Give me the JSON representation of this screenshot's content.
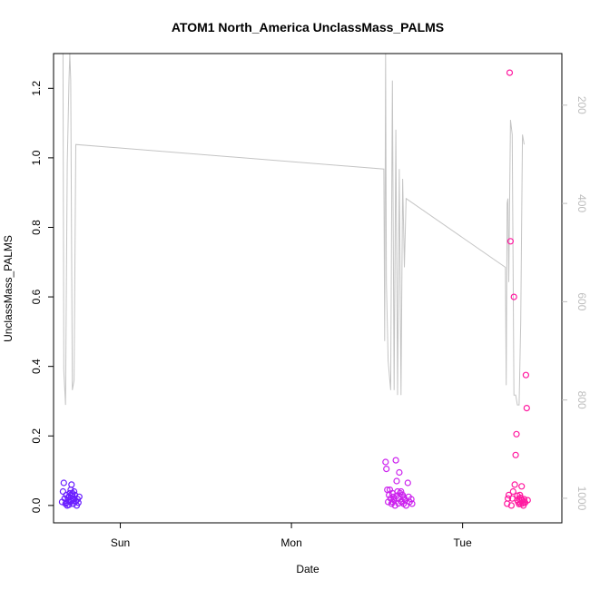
{
  "chart_data": {
    "type": "scatter",
    "title": "ATOM1 North_America UnclassMass_PALMS",
    "xlabel": "Date",
    "ylabel": "UnclassMass_PALMS",
    "x_axis": {
      "type": "date",
      "range_days": [
        -0.39,
        2.58
      ],
      "ticks": [
        {
          "label": "Sun",
          "value": 0
        },
        {
          "label": "Mon",
          "value": 1
        },
        {
          "label": "Tue",
          "value": 2
        }
      ]
    },
    "y_axis": {
      "range": [
        -0.05,
        1.3
      ],
      "ticks": [
        "0.0",
        "0.2",
        "0.4",
        "0.6",
        "0.8",
        "1.0",
        "1.2"
      ]
    },
    "y2_axis": {
      "description": "secondary altitude-like axis, inverted",
      "range": [
        1050,
        95
      ],
      "ticks": [
        "200",
        "400",
        "600",
        "800",
        "1000"
      ],
      "color": "#bdbdbd"
    },
    "grid": false,
    "legend": "none",
    "colors": {
      "group1": "#6a1fff",
      "group2": "#cc22ee",
      "group3": "#ff1aa0",
      "line": "#c4c4c4"
    },
    "series": [
      {
        "color": "#6a1fff",
        "points": [
          [
            -0.34,
            0.01
          ],
          [
            -0.335,
            0.04
          ],
          [
            -0.33,
            0.065
          ],
          [
            -0.325,
            0.02
          ],
          [
            -0.32,
            0.005
          ],
          [
            -0.315,
            0.03
          ],
          [
            -0.31,
            0.0
          ],
          [
            -0.305,
            0.015
          ],
          [
            -0.3,
            0.025
          ],
          [
            -0.295,
            0.01
          ],
          [
            -0.29,
            0.045
          ],
          [
            -0.285,
            0.06
          ],
          [
            -0.28,
            0.035
          ],
          [
            -0.275,
            0.005
          ],
          [
            -0.27,
            0.02
          ],
          [
            -0.265,
            0.03
          ],
          [
            -0.26,
            0.012
          ],
          [
            -0.255,
            0.0
          ],
          [
            -0.25,
            0.018
          ],
          [
            -0.245,
            0.008
          ],
          [
            -0.24,
            0.025
          ],
          [
            -0.3,
            0.002
          ],
          [
            -0.29,
            0.015
          ],
          [
            -0.28,
            0.028
          ],
          [
            -0.27,
            0.04
          ],
          [
            -0.315,
            0.008
          ],
          [
            -0.305,
            0.022
          ],
          [
            -0.295,
            0.035
          ],
          [
            -0.285,
            0.012
          ],
          [
            -0.275,
            0.018
          ]
        ]
      },
      {
        "color": "#cc22ee",
        "points": [
          [
            1.55,
            0.125
          ],
          [
            1.555,
            0.105
          ],
          [
            1.56,
            0.045
          ],
          [
            1.565,
            0.01
          ],
          [
            1.57,
            0.03
          ],
          [
            1.575,
            0.045
          ],
          [
            1.58,
            0.02
          ],
          [
            1.585,
            0.005
          ],
          [
            1.59,
            0.01
          ],
          [
            1.595,
            0.025
          ],
          [
            1.6,
            0.015
          ],
          [
            1.605,
            0.0
          ],
          [
            1.61,
            0.13
          ],
          [
            1.615,
            0.07
          ],
          [
            1.62,
            0.04
          ],
          [
            1.625,
            0.02
          ],
          [
            1.63,
            0.095
          ],
          [
            1.635,
            0.035
          ],
          [
            1.64,
            0.04
          ],
          [
            1.645,
            0.01
          ],
          [
            1.65,
            0.03
          ],
          [
            1.655,
            0.005
          ],
          [
            1.66,
            0.02
          ],
          [
            1.665,
            0.015
          ],
          [
            1.67,
            0.0
          ],
          [
            1.68,
            0.065
          ],
          [
            1.685,
            0.025
          ],
          [
            1.69,
            0.01
          ],
          [
            1.7,
            0.018
          ],
          [
            1.705,
            0.005
          ],
          [
            1.59,
            0.035
          ],
          [
            1.6,
            0.02
          ],
          [
            1.615,
            0.028
          ],
          [
            1.625,
            0.006
          ],
          [
            1.64,
            0.012
          ],
          [
            1.655,
            0.024
          ]
        ]
      },
      {
        "color": "#ff1aa0",
        "points": [
          [
            2.26,
            0.005
          ],
          [
            2.265,
            0.02
          ],
          [
            2.27,
            0.03
          ],
          [
            2.275,
            1.245
          ],
          [
            2.28,
            0.76
          ],
          [
            2.285,
            0.0
          ],
          [
            2.29,
            0.02
          ],
          [
            2.295,
            0.04
          ],
          [
            2.3,
            0.6
          ],
          [
            2.305,
            0.06
          ],
          [
            2.31,
            0.145
          ],
          [
            2.315,
            0.205
          ],
          [
            2.32,
            0.015
          ],
          [
            2.325,
            0.01
          ],
          [
            2.33,
            0.02
          ],
          [
            2.335,
            0.03
          ],
          [
            2.34,
            0.005
          ],
          [
            2.345,
            0.055
          ],
          [
            2.35,
            0.015
          ],
          [
            2.355,
            0.0
          ],
          [
            2.36,
            0.01
          ],
          [
            2.365,
            0.008
          ],
          [
            2.37,
            0.375
          ],
          [
            2.375,
            0.28
          ],
          [
            2.38,
            0.015
          ],
          [
            2.34,
            0.022
          ],
          [
            2.33,
            0.004
          ],
          [
            2.32,
            0.028
          ],
          [
            2.36,
            0.018
          ],
          [
            2.35,
            0.006
          ]
        ]
      }
    ],
    "line_series": {
      "axis": "y2",
      "color": "#c4c4c4",
      "points": [
        [
          -0.335,
          95
        ],
        [
          -0.33,
          740
        ],
        [
          -0.32,
          810
        ],
        [
          -0.31,
          320
        ],
        [
          -0.3,
          150
        ],
        [
          -0.295,
          95
        ],
        [
          -0.29,
          150
        ],
        [
          -0.28,
          780
        ],
        [
          -0.27,
          760
        ],
        [
          -0.26,
          280
        ],
        [
          1.54,
          330
        ],
        [
          1.545,
          680
        ],
        [
          1.55,
          95
        ],
        [
          1.555,
          560
        ],
        [
          1.565,
          720
        ],
        [
          1.58,
          780
        ],
        [
          1.59,
          150
        ],
        [
          1.6,
          780
        ],
        [
          1.61,
          250
        ],
        [
          1.62,
          790
        ],
        [
          1.63,
          330
        ],
        [
          1.64,
          790
        ],
        [
          1.65,
          350
        ],
        [
          1.66,
          530
        ],
        [
          1.67,
          390
        ],
        [
          2.25,
          530
        ],
        [
          2.255,
          770
        ],
        [
          2.26,
          400
        ],
        [
          2.265,
          390
        ],
        [
          2.27,
          560
        ],
        [
          2.28,
          230
        ],
        [
          2.29,
          260
        ],
        [
          2.3,
          790
        ],
        [
          2.31,
          790
        ],
        [
          2.32,
          810
        ],
        [
          2.33,
          810
        ],
        [
          2.34,
          640
        ],
        [
          2.35,
          260
        ],
        [
          2.36,
          280
        ]
      ]
    }
  }
}
